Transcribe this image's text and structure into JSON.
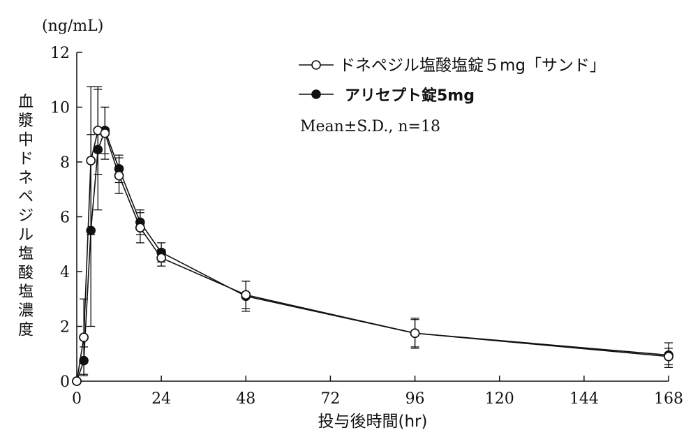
{
  "chart_data": {
    "type": "line",
    "unit_label": "(ng/mL)",
    "xlabel": "投与後時間(hr)",
    "ylabel": "血漿中ドネペジル塩酸塩濃度",
    "xlim": [
      0,
      168
    ],
    "ylim": [
      0,
      12
    ],
    "x_ticks": [
      "0",
      "24",
      "48",
      "72",
      "96",
      "120",
      "144",
      "168"
    ],
    "y_ticks": [
      "0",
      "2",
      "4",
      "6",
      "8",
      "10",
      "12"
    ],
    "x_tick_values": [
      0,
      24,
      48,
      72,
      96,
      120,
      144,
      168
    ],
    "y_tick_values": [
      0,
      2,
      4,
      6,
      8,
      10,
      12
    ],
    "annotation": "Mean±S.D., n=18",
    "grid": false,
    "legend_position": "top-right",
    "series": [
      {
        "name": "ドネペジル塩酸塩錠５mg「サンド」",
        "marker": "open-circle",
        "color": "#111111",
        "x": [
          0,
          2,
          4,
          6,
          8,
          12,
          18,
          24,
          48,
          96,
          168
        ],
        "y": [
          0.0,
          1.6,
          8.05,
          9.15,
          9.05,
          7.5,
          5.6,
          4.5,
          3.15,
          1.75,
          0.9
        ],
        "sd": [
          0.0,
          1.4,
          2.7,
          1.6,
          0.95,
          0.65,
          0.55,
          0.3,
          0.5,
          0.5,
          0.3
        ]
      },
      {
        "name": "アリセプト錠5mg",
        "marker": "filled-circle",
        "color": "#111111",
        "x": [
          0,
          2,
          4,
          6,
          8,
          12,
          18,
          24,
          48,
          96,
          168
        ],
        "y": [
          0.0,
          0.75,
          5.5,
          8.45,
          9.15,
          7.75,
          5.8,
          4.7,
          3.1,
          1.75,
          0.95
        ],
        "sd": [
          0.0,
          0.5,
          3.5,
          2.2,
          0.85,
          0.5,
          0.45,
          0.35,
          0.55,
          0.55,
          0.45
        ]
      }
    ]
  }
}
